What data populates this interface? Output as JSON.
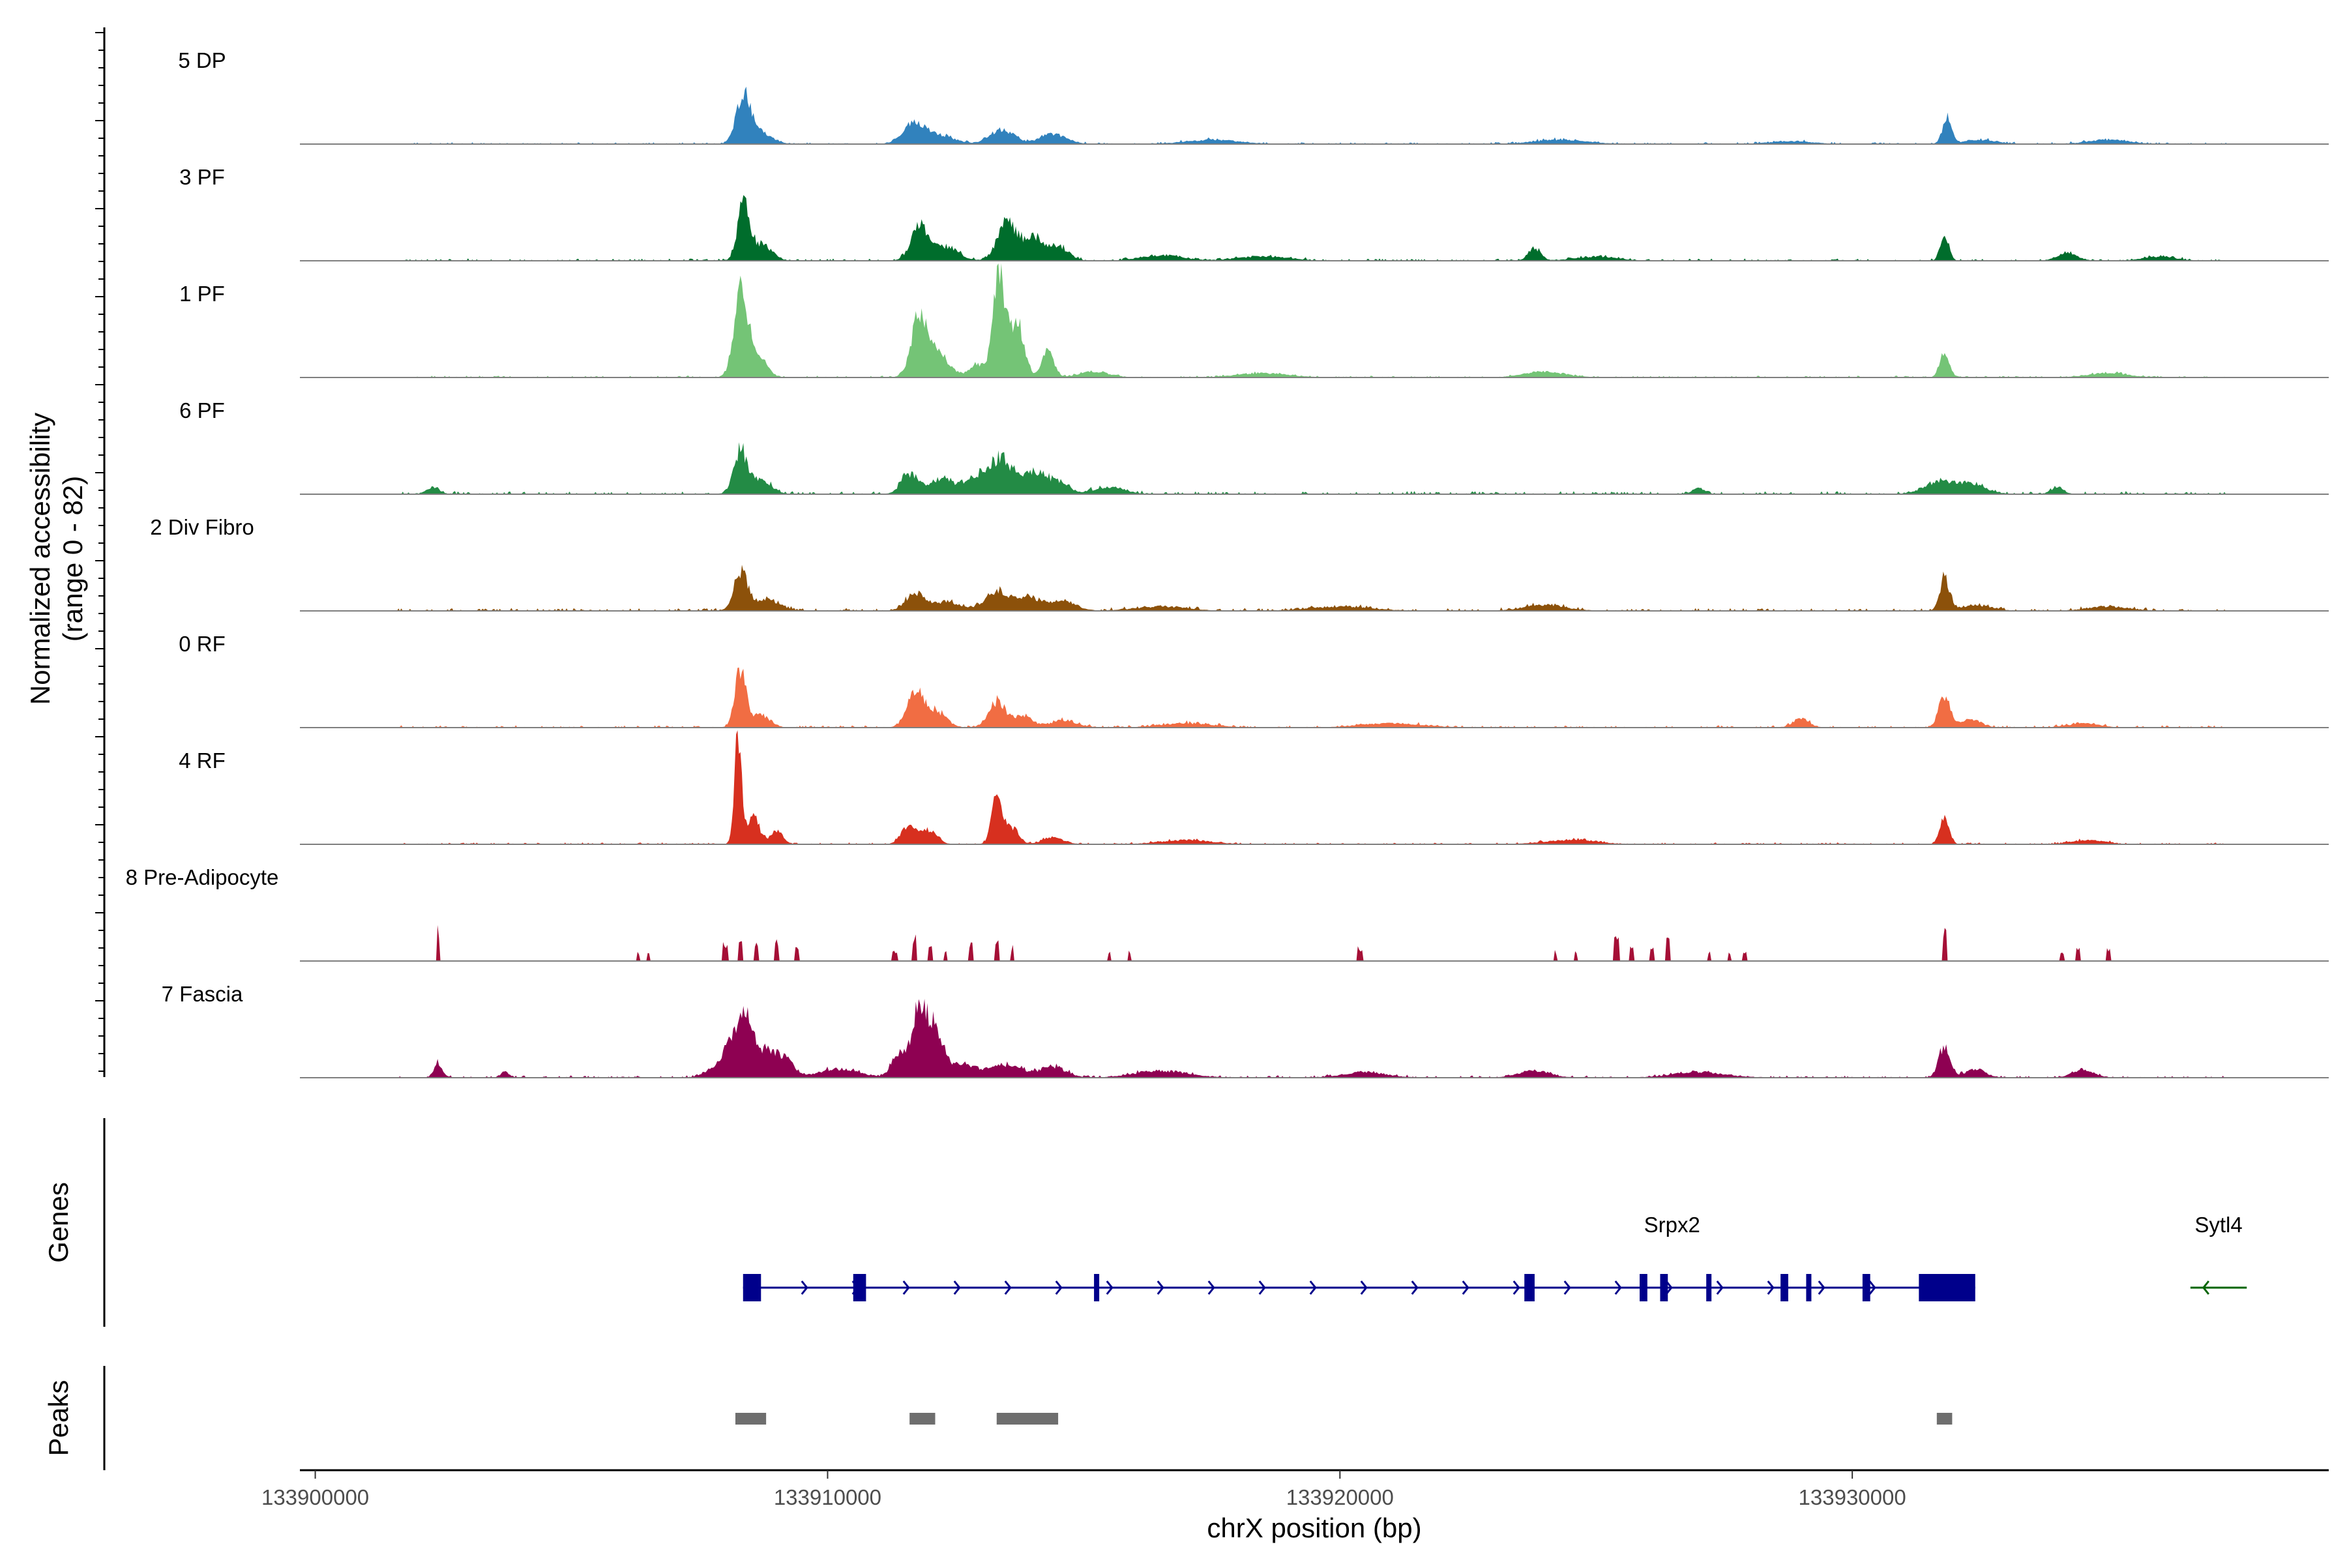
{
  "chart_data": {
    "type": "area",
    "title": "",
    "ylabel": "Normalized accessibility",
    "ylabel_range": "(range 0 - 82)",
    "ylim": [
      0,
      82
    ],
    "xlabel": "chrX position (bp)",
    "xlim": [
      133899700,
      133939300
    ],
    "x_ticks": [
      133900000,
      133910000,
      133920000,
      133930000
    ],
    "x_tick_labels": [
      "133900000",
      "133910000",
      "133920000",
      "133930000"
    ],
    "tracks_title_genes": "Genes",
    "tracks_title_peaks": "Peaks",
    "series": [
      {
        "name": "5 DP",
        "color": "#3182bd",
        "baseline": 1.2,
        "mode": "smooth",
        "peaks": [
          [
            133908350,
            32,
            130
          ],
          [
            133908600,
            10,
            250
          ],
          [
            133911700,
            14,
            220
          ],
          [
            133912200,
            6,
            280
          ],
          [
            133913400,
            10,
            240
          ],
          [
            133914400,
            7,
            260
          ],
          [
            133917500,
            3,
            500
          ],
          [
            133924300,
            3,
            500
          ],
          [
            133928800,
            2,
            400
          ],
          [
            133931850,
            18,
            90
          ],
          [
            133932500,
            3,
            300
          ],
          [
            133935000,
            3,
            400
          ]
        ]
      },
      {
        "name": "3 PF",
        "color": "#006d2c",
        "baseline": 1.5,
        "mode": "smooth",
        "peaks": [
          [
            133908350,
            40,
            110
          ],
          [
            133908700,
            12,
            200
          ],
          [
            133911800,
            24,
            170
          ],
          [
            133912300,
            10,
            250
          ],
          [
            133913500,
            28,
            180
          ],
          [
            133914000,
            16,
            200
          ],
          [
            133914500,
            10,
            200
          ],
          [
            133916500,
            4,
            400
          ],
          [
            133918500,
            3,
            500
          ],
          [
            133923800,
            9,
            120
          ],
          [
            133925000,
            3,
            400
          ],
          [
            133931800,
            20,
            80
          ],
          [
            133934200,
            5,
            200
          ],
          [
            133936000,
            3,
            300
          ]
        ]
      },
      {
        "name": "1 PF",
        "color": "#74c476",
        "baseline": 1.2,
        "mode": "smooth",
        "peaks": [
          [
            133908300,
            58,
            130
          ],
          [
            133908600,
            18,
            180
          ],
          [
            133911800,
            45,
            160
          ],
          [
            133912200,
            15,
            200
          ],
          [
            133912900,
            10,
            140
          ],
          [
            133913350,
            75,
            120
          ],
          [
            133913700,
            38,
            140
          ],
          [
            133914300,
            20,
            110
          ],
          [
            133915200,
            4,
            300
          ],
          [
            133918500,
            3,
            500
          ],
          [
            133924000,
            4,
            400
          ],
          [
            133931800,
            18,
            90
          ],
          [
            133935000,
            3,
            400
          ]
        ]
      },
      {
        "name": "6 PF",
        "color": "#238b45",
        "baseline": 2.0,
        "mode": "smooth",
        "peaks": [
          [
            133908300,
            30,
            130
          ],
          [
            133908700,
            10,
            200
          ],
          [
            133911600,
            14,
            160
          ],
          [
            133912200,
            10,
            250
          ],
          [
            133912900,
            12,
            240
          ],
          [
            133913400,
            24,
            220
          ],
          [
            133914000,
            15,
            220
          ],
          [
            133914500,
            9,
            200
          ],
          [
            133915500,
            5,
            300
          ],
          [
            133902300,
            5,
            120
          ],
          [
            133927000,
            4,
            120
          ],
          [
            133931700,
            8,
            300
          ],
          [
            133932300,
            7,
            300
          ],
          [
            133934000,
            5,
            120
          ]
        ]
      },
      {
        "name": "2 Div Fibro",
        "color": "#8c510a",
        "baseline": 1.8,
        "mode": "smooth",
        "peaks": [
          [
            133908300,
            28,
            130
          ],
          [
            133908800,
            8,
            250
          ],
          [
            133911700,
            12,
            180
          ],
          [
            133912300,
            6,
            300
          ],
          [
            133913300,
            14,
            220
          ],
          [
            133913900,
            10,
            250
          ],
          [
            133914600,
            7,
            250
          ],
          [
            133916500,
            3,
            500
          ],
          [
            133920000,
            3,
            600
          ],
          [
            133924000,
            4,
            400
          ],
          [
            133931800,
            24,
            90
          ],
          [
            133932400,
            4,
            300
          ],
          [
            133935000,
            3,
            400
          ]
        ]
      },
      {
        "name": "0 RF",
        "color": "#f16d43",
        "baseline": 1.5,
        "mode": "smooth",
        "peaks": [
          [
            133908300,
            40,
            110
          ],
          [
            133908700,
            9,
            180
          ],
          [
            133911700,
            24,
            160
          ],
          [
            133912100,
            12,
            200
          ],
          [
            133913300,
            18,
            160
          ],
          [
            133913800,
            8,
            200
          ],
          [
            133914600,
            5,
            250
          ],
          [
            133917000,
            3,
            500
          ],
          [
            133921000,
            3,
            600
          ],
          [
            133929000,
            7,
            150
          ],
          [
            133931800,
            22,
            110
          ],
          [
            133932300,
            6,
            200
          ],
          [
            133934500,
            3,
            300
          ]
        ]
      },
      {
        "name": "4 RF",
        "color": "#d7301f",
        "baseline": 1.2,
        "mode": "smooth",
        "peaks": [
          [
            133908250,
            80,
            70
          ],
          [
            133908550,
            22,
            110
          ],
          [
            133909000,
            9,
            130
          ],
          [
            133911600,
            14,
            150
          ],
          [
            133912000,
            10,
            150
          ],
          [
            133913300,
            33,
            100
          ],
          [
            133913600,
            12,
            130
          ],
          [
            133914400,
            5,
            200
          ],
          [
            133917000,
            3,
            500
          ],
          [
            133924500,
            3,
            500
          ],
          [
            133931800,
            18,
            90
          ],
          [
            133934600,
            3,
            300
          ]
        ]
      },
      {
        "name": "8 Pre-Adipocyte",
        "color": "#a50f36",
        "baseline": 0,
        "mode": "blocks",
        "peaks": [
          [
            133902400,
            30,
            70
          ],
          [
            133906300,
            8,
            70
          ],
          [
            133906500,
            8,
            60
          ],
          [
            133908000,
            14,
            90
          ],
          [
            133908300,
            24,
            90
          ],
          [
            133908600,
            18,
            90
          ],
          [
            133909000,
            18,
            90
          ],
          [
            133909400,
            14,
            90
          ],
          [
            133911300,
            10,
            110
          ],
          [
            133911700,
            20,
            90
          ],
          [
            133912000,
            14,
            90
          ],
          [
            133912300,
            10,
            60
          ],
          [
            133912800,
            16,
            70
          ],
          [
            133913300,
            18,
            80
          ],
          [
            133913600,
            12,
            70
          ],
          [
            133915500,
            8,
            60
          ],
          [
            133915900,
            8,
            50
          ],
          [
            133920400,
            12,
            120
          ],
          [
            133924200,
            8,
            60
          ],
          [
            133924600,
            8,
            60
          ],
          [
            133925400,
            26,
            100
          ],
          [
            133925700,
            14,
            80
          ],
          [
            133926100,
            10,
            80
          ],
          [
            133926400,
            18,
            90
          ],
          [
            133927200,
            8,
            60
          ],
          [
            133927600,
            8,
            60
          ],
          [
            133927900,
            8,
            60
          ],
          [
            133931800,
            28,
            90
          ],
          [
            133934100,
            8,
            70
          ],
          [
            133934400,
            14,
            70
          ],
          [
            133935000,
            12,
            90
          ]
        ]
      },
      {
        "name": "7 Fascia",
        "color": "#8e0152",
        "baseline": 1.5,
        "mode": "smooth",
        "peaks": [
          [
            133902400,
            10,
            80
          ],
          [
            133903700,
            4,
            80
          ],
          [
            133907700,
            5,
            150
          ],
          [
            133908100,
            26,
            160
          ],
          [
            133908400,
            42,
            130
          ],
          [
            133908800,
            20,
            200
          ],
          [
            133909200,
            12,
            150
          ],
          [
            133910200,
            6,
            400
          ],
          [
            133911400,
            18,
            140
          ],
          [
            133911800,
            50,
            140
          ],
          [
            133912100,
            30,
            150
          ],
          [
            133912600,
            10,
            300
          ],
          [
            133913500,
            9,
            300
          ],
          [
            133914400,
            8,
            250
          ],
          [
            133916500,
            5,
            500
          ],
          [
            133920500,
            4,
            400
          ],
          [
            133923800,
            5,
            300
          ],
          [
            133927000,
            4,
            500
          ],
          [
            133931800,
            22,
            110
          ],
          [
            133932400,
            6,
            200
          ],
          [
            133934500,
            6,
            200
          ]
        ]
      }
    ],
    "genes": [
      {
        "name": "Srpx2",
        "strand": "+",
        "color": "#00008b",
        "start": 133908350,
        "end": 133932400,
        "exons": [
          [
            133908350,
            133908700
          ],
          [
            133910500,
            133910750
          ],
          [
            133915200,
            133915280
          ],
          [
            133923600,
            133923800
          ],
          [
            133925850,
            133926000
          ],
          [
            133926250,
            133926400
          ],
          [
            133927150,
            133927250
          ],
          [
            133928600,
            133928750
          ],
          [
            133929100,
            133929200
          ],
          [
            133930200,
            133930350
          ],
          [
            133931300,
            133932400
          ]
        ]
      },
      {
        "name": "Sytl4",
        "strand": "-",
        "color": "#006400",
        "start": 133936600,
        "end": 133937700,
        "exons": []
      }
    ],
    "peaks_track": [
      [
        133908200,
        133908800
      ],
      [
        133911600,
        133912100
      ],
      [
        133913300,
        133914500
      ],
      [
        133931650,
        133931950
      ]
    ]
  }
}
